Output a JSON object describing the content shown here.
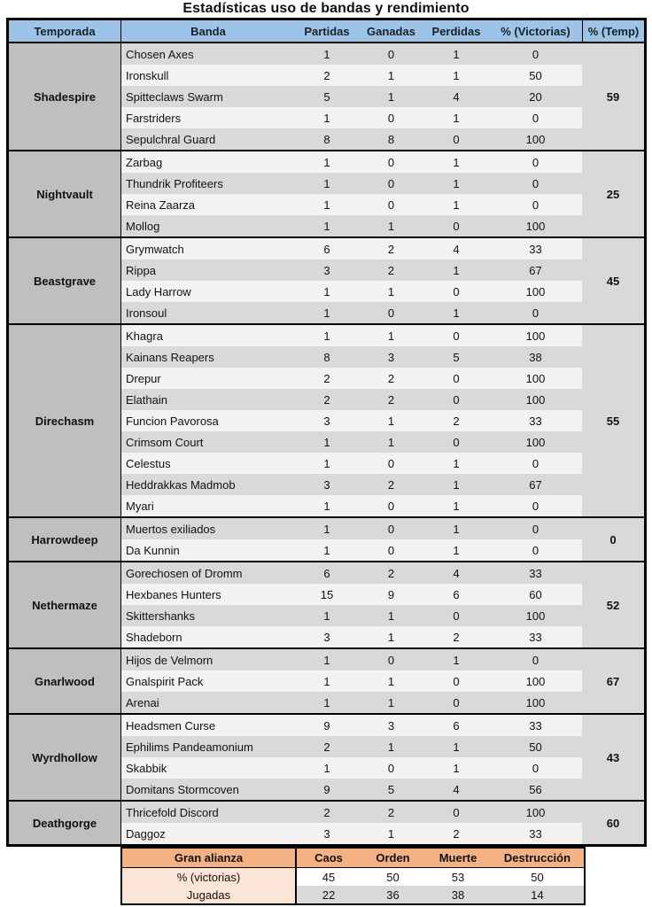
{
  "title": "Estadísticas uso de bandas y rendimiento",
  "colors": {
    "header_blue": "#9DC3E6",
    "season_gray": "#BFBFBF",
    "row_dark": "#D9D9D9",
    "row_light": "#F2F2F2",
    "orange": "#F4B183",
    "orange_light": "#FBE5D6"
  },
  "table": {
    "headers": [
      "Temporada",
      "Banda",
      "Partidas",
      "Ganadas",
      "Perdidas",
      "% (Victorias)",
      "% (Temp)"
    ],
    "groups": [
      {
        "season": "Shadespire",
        "season_pct": 59,
        "bands": [
          {
            "name": "Chosen Axes",
            "partidas": 1,
            "ganadas": 0,
            "perdidas": 1,
            "pct_victorias": 0
          },
          {
            "name": "Ironskull",
            "partidas": 2,
            "ganadas": 1,
            "perdidas": 1,
            "pct_victorias": 50
          },
          {
            "name": "Spitteclaws Swarm",
            "partidas": 5,
            "ganadas": 1,
            "perdidas": 4,
            "pct_victorias": 20
          },
          {
            "name": "Farstriders",
            "partidas": 1,
            "ganadas": 0,
            "perdidas": 1,
            "pct_victorias": 0
          },
          {
            "name": "Sepulchral Guard",
            "partidas": 8,
            "ganadas": 8,
            "perdidas": 0,
            "pct_victorias": 100
          }
        ]
      },
      {
        "season": "Nightvault",
        "season_pct": 25,
        "bands": [
          {
            "name": "Zarbag",
            "partidas": 1,
            "ganadas": 0,
            "perdidas": 1,
            "pct_victorias": 0
          },
          {
            "name": "Thundrik Profiteers",
            "partidas": 1,
            "ganadas": 0,
            "perdidas": 1,
            "pct_victorias": 0
          },
          {
            "name": "Reina Zaarza",
            "partidas": 1,
            "ganadas": 0,
            "perdidas": 1,
            "pct_victorias": 0
          },
          {
            "name": "Mollog",
            "partidas": 1,
            "ganadas": 1,
            "perdidas": 0,
            "pct_victorias": 100
          }
        ]
      },
      {
        "season": "Beastgrave",
        "season_pct": 45,
        "bands": [
          {
            "name": "Grymwatch",
            "partidas": 6,
            "ganadas": 2,
            "perdidas": 4,
            "pct_victorias": 33
          },
          {
            "name": "Rippa",
            "partidas": 3,
            "ganadas": 2,
            "perdidas": 1,
            "pct_victorias": 67
          },
          {
            "name": "Lady Harrow",
            "partidas": 1,
            "ganadas": 1,
            "perdidas": 0,
            "pct_victorias": 100
          },
          {
            "name": "Ironsoul",
            "partidas": 1,
            "ganadas": 0,
            "perdidas": 1,
            "pct_victorias": 0
          }
        ]
      },
      {
        "season": "Direchasm",
        "season_pct": 55,
        "bands": [
          {
            "name": "Khagra",
            "partidas": 1,
            "ganadas": 1,
            "perdidas": 0,
            "pct_victorias": 100
          },
          {
            "name": "Kainans Reapers",
            "partidas": 8,
            "ganadas": 3,
            "perdidas": 5,
            "pct_victorias": 38
          },
          {
            "name": "Drepur",
            "partidas": 2,
            "ganadas": 2,
            "perdidas": 0,
            "pct_victorias": 100
          },
          {
            "name": "Elathain",
            "partidas": 2,
            "ganadas": 2,
            "perdidas": 0,
            "pct_victorias": 100
          },
          {
            "name": "Funcion Pavorosa",
            "partidas": 3,
            "ganadas": 1,
            "perdidas": 2,
            "pct_victorias": 33
          },
          {
            "name": "Crimsom Court",
            "partidas": 1,
            "ganadas": 1,
            "perdidas": 0,
            "pct_victorias": 100
          },
          {
            "name": "Celestus",
            "partidas": 1,
            "ganadas": 0,
            "perdidas": 1,
            "pct_victorias": 0
          },
          {
            "name": "Heddrakkas Madmob",
            "partidas": 3,
            "ganadas": 2,
            "perdidas": 1,
            "pct_victorias": 67
          },
          {
            "name": "Myari",
            "partidas": 1,
            "ganadas": 0,
            "perdidas": 1,
            "pct_victorias": 0
          }
        ]
      },
      {
        "season": "Harrowdeep",
        "season_pct": 0,
        "bands": [
          {
            "name": "Muertos exiliados",
            "partidas": 1,
            "ganadas": 0,
            "perdidas": 1,
            "pct_victorias": 0
          },
          {
            "name": "Da Kunnin",
            "partidas": 1,
            "ganadas": 0,
            "perdidas": 1,
            "pct_victorias": 0
          }
        ]
      },
      {
        "season": "Nethermaze",
        "season_pct": 52,
        "bands": [
          {
            "name": "Gorechosen of Dromm",
            "partidas": 6,
            "ganadas": 2,
            "perdidas": 4,
            "pct_victorias": 33
          },
          {
            "name": "Hexbanes Hunters",
            "partidas": 15,
            "ganadas": 9,
            "perdidas": 6,
            "pct_victorias": 60
          },
          {
            "name": "Skittershanks",
            "partidas": 1,
            "ganadas": 1,
            "perdidas": 0,
            "pct_victorias": 100
          },
          {
            "name": "Shadeborn",
            "partidas": 3,
            "ganadas": 1,
            "perdidas": 2,
            "pct_victorias": 33
          }
        ]
      },
      {
        "season": "Gnarlwood",
        "season_pct": 67,
        "bands": [
          {
            "name": "Hijos de Velmorn",
            "partidas": 1,
            "ganadas": 0,
            "perdidas": 1,
            "pct_victorias": 0
          },
          {
            "name": "Gnalspirit Pack",
            "partidas": 1,
            "ganadas": 1,
            "perdidas": 0,
            "pct_victorias": 100
          },
          {
            "name": "Arenai",
            "partidas": 1,
            "ganadas": 1,
            "perdidas": 0,
            "pct_victorias": 100
          }
        ]
      },
      {
        "season": "Wyrdhollow",
        "season_pct": 43,
        "bands": [
          {
            "name": "Headsmen Curse",
            "partidas": 9,
            "ganadas": 3,
            "perdidas": 6,
            "pct_victorias": 33
          },
          {
            "name": "Ephilims Pandeamonium",
            "partidas": 2,
            "ganadas": 1,
            "perdidas": 1,
            "pct_victorias": 50
          },
          {
            "name": "Skabbik",
            "partidas": 1,
            "ganadas": 0,
            "perdidas": 1,
            "pct_victorias": 0
          },
          {
            "name": "Domitans Stormcoven",
            "partidas": 9,
            "ganadas": 5,
            "perdidas": 4,
            "pct_victorias": 56
          }
        ]
      },
      {
        "season": "Deathgorge",
        "season_pct": 60,
        "bands": [
          {
            "name": "Thricefold Discord",
            "partidas": 2,
            "ganadas": 2,
            "perdidas": 0,
            "pct_victorias": 100
          },
          {
            "name": "Daggoz",
            "partidas": 3,
            "ganadas": 1,
            "perdidas": 2,
            "pct_victorias": 33
          }
        ]
      }
    ]
  },
  "summary": {
    "corner_label": "Gran alianza",
    "columns": [
      "Caos",
      "Orden",
      "Muerte",
      "Destrucción"
    ],
    "rows": [
      {
        "label": "% (victorias)",
        "values": [
          45,
          50,
          53,
          50
        ]
      },
      {
        "label": "Jugadas",
        "values": [
          22,
          36,
          38,
          14
        ]
      }
    ]
  }
}
